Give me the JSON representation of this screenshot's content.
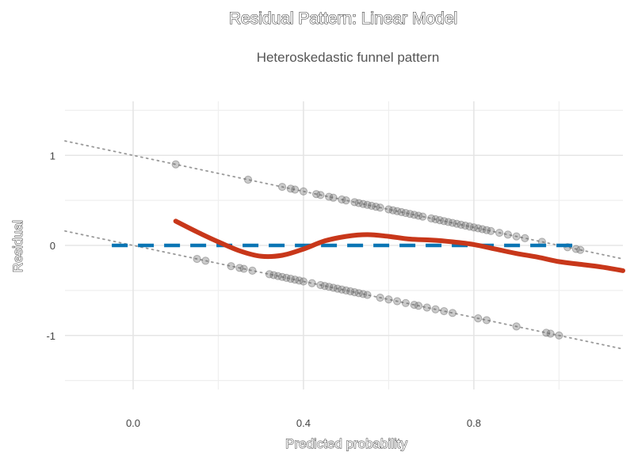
{
  "chart_data": {
    "type": "scatter",
    "title": "Residual Pattern: Linear Model",
    "subtitle": "Heteroskedastic funnel pattern",
    "xlabel": "Predicted probability",
    "ylabel": "Residual",
    "xlim": [
      -0.16,
      1.15
    ],
    "ylim": [
      -1.6,
      1.6
    ],
    "x_ticks": [
      0.0,
      0.4,
      0.8
    ],
    "x_tick_labels": [
      "0.0",
      "0.4",
      "0.8"
    ],
    "y_ticks": [
      -1,
      0,
      1
    ],
    "y_tick_labels": [
      "-1",
      "0",
      "1"
    ],
    "grid": true,
    "legend": "none",
    "colors": {
      "points": "#666666",
      "smooth": "#c8371a",
      "zero_line": "#0a75b4",
      "reference_lines": "#999999",
      "grid": "#e5e5e5"
    },
    "series": [
      {
        "type": "scatter",
        "role": "residuals_y1",
        "x": [
          0.1,
          0.27,
          0.35,
          0.37,
          0.38,
          0.4,
          0.43,
          0.44,
          0.46,
          0.47,
          0.49,
          0.5,
          0.52,
          0.53,
          0.54,
          0.55,
          0.56,
          0.57,
          0.58,
          0.6,
          0.61,
          0.62,
          0.63,
          0.64,
          0.65,
          0.66,
          0.67,
          0.68,
          0.7,
          0.71,
          0.72,
          0.73,
          0.74,
          0.75,
          0.76,
          0.77,
          0.78,
          0.79,
          0.8,
          0.81,
          0.82,
          0.83,
          0.84,
          0.86,
          0.88,
          0.9,
          0.92,
          0.96,
          1.02,
          1.04,
          1.05
        ],
        "y": [
          0.9,
          0.73,
          0.65,
          0.63,
          0.62,
          0.6,
          0.57,
          0.56,
          0.54,
          0.53,
          0.51,
          0.5,
          0.48,
          0.47,
          0.46,
          0.45,
          0.44,
          0.43,
          0.42,
          0.4,
          0.39,
          0.38,
          0.37,
          0.36,
          0.35,
          0.34,
          0.33,
          0.32,
          0.3,
          0.29,
          0.28,
          0.27,
          0.26,
          0.25,
          0.24,
          0.23,
          0.22,
          0.21,
          0.2,
          0.19,
          0.18,
          0.17,
          0.16,
          0.14,
          0.12,
          0.1,
          0.08,
          0.04,
          -0.02,
          -0.04,
          -0.05
        ]
      },
      {
        "type": "scatter",
        "role": "residuals_y0",
        "x": [
          0.15,
          0.17,
          0.23,
          0.25,
          0.26,
          0.28,
          0.32,
          0.33,
          0.34,
          0.35,
          0.36,
          0.37,
          0.38,
          0.39,
          0.4,
          0.42,
          0.44,
          0.45,
          0.46,
          0.47,
          0.48,
          0.49,
          0.5,
          0.51,
          0.52,
          0.53,
          0.54,
          0.55,
          0.58,
          0.6,
          0.62,
          0.64,
          0.66,
          0.67,
          0.69,
          0.71,
          0.73,
          0.75,
          0.81,
          0.83,
          0.9,
          0.97,
          0.98,
          1.0
        ],
        "y": [
          -0.15,
          -0.17,
          -0.23,
          -0.25,
          -0.26,
          -0.28,
          -0.32,
          -0.33,
          -0.34,
          -0.35,
          -0.36,
          -0.37,
          -0.38,
          -0.39,
          -0.4,
          -0.42,
          -0.44,
          -0.45,
          -0.46,
          -0.47,
          -0.48,
          -0.49,
          -0.5,
          -0.51,
          -0.52,
          -0.53,
          -0.54,
          -0.55,
          -0.58,
          -0.6,
          -0.62,
          -0.64,
          -0.66,
          -0.67,
          -0.69,
          -0.71,
          -0.73,
          -0.75,
          -0.81,
          -0.83,
          -0.9,
          -0.97,
          -0.98,
          -1.0
        ]
      },
      {
        "type": "line",
        "role": "smooth",
        "x": [
          0.1,
          0.15,
          0.2,
          0.25,
          0.3,
          0.35,
          0.4,
          0.45,
          0.5,
          0.55,
          0.6,
          0.65,
          0.7,
          0.75,
          0.8,
          0.85,
          0.9,
          0.95,
          1.0,
          1.05,
          1.1,
          1.15
        ],
        "y": [
          0.27,
          0.15,
          0.04,
          -0.06,
          -0.12,
          -0.11,
          -0.04,
          0.05,
          0.1,
          0.12,
          0.1,
          0.07,
          0.06,
          0.04,
          0.01,
          -0.04,
          -0.09,
          -0.13,
          -0.18,
          -0.21,
          -0.24,
          -0.28
        ]
      },
      {
        "type": "line",
        "role": "zero_line",
        "x": [
          -0.05,
          1.05
        ],
        "y": [
          0,
          0
        ]
      },
      {
        "type": "line",
        "role": "reference_y1",
        "x": [
          -0.16,
          1.15
        ],
        "y": [
          1.16,
          -0.15
        ]
      },
      {
        "type": "line",
        "role": "reference_y0",
        "x": [
          -0.16,
          1.15
        ],
        "y": [
          0.16,
          -1.15
        ]
      }
    ]
  }
}
